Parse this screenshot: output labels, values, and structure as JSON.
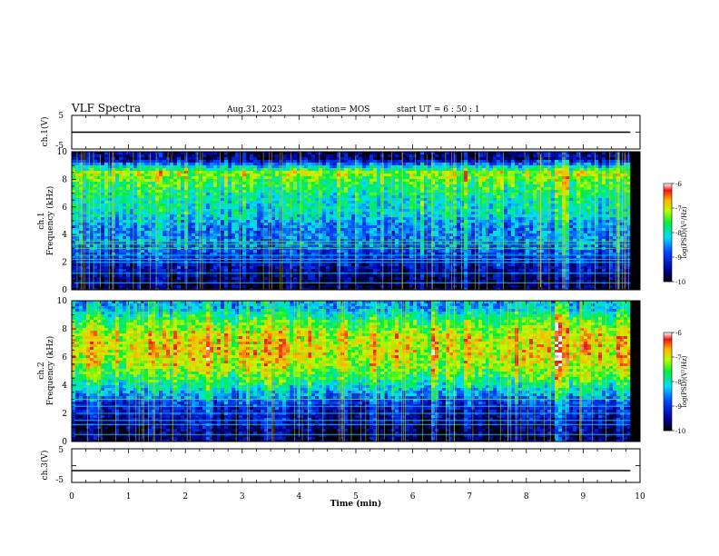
{
  "header": {
    "title": "VLF Spectra",
    "date": "Aug.31, 2023",
    "station": "station= MOS",
    "start": "start  UT =  6 : 50 : 1"
  },
  "chart_data": [
    {
      "type": "line",
      "id": "ch1-waveform",
      "ylabel": "ch.1(V)",
      "ylim": [
        -5,
        5
      ],
      "yticks": [
        "5",
        "-5"
      ],
      "xlim": [
        0,
        10
      ],
      "series": [
        {
          "x": [
            0,
            9.83
          ],
          "values": [
            0,
            0
          ]
        }
      ]
    },
    {
      "type": "heatmap",
      "id": "ch1-spectrogram",
      "ylabel": "ch.1\nFrequency (kHz)",
      "xlim": [
        0,
        10
      ],
      "ylim": [
        0,
        10
      ],
      "yticks": [
        "0",
        "2",
        "4",
        "6",
        "8",
        "10"
      ],
      "data_x_end": 9.83,
      "colorbar": {
        "label": "log(PSD)(V²/Hz)",
        "range": [
          -10,
          -6
        ],
        "ticks": [
          "-6",
          "-7",
          "-8",
          "-9",
          "-10"
        ]
      },
      "profile": [
        {
          "f": 0.5,
          "v": -9.8
        },
        {
          "f": 1.5,
          "v": -9.4
        },
        {
          "f": 2.5,
          "v": -9.0
        },
        {
          "f": 3.5,
          "v": -8.6
        },
        {
          "f": 4.5,
          "v": -8.6
        },
        {
          "f": 5.5,
          "v": -8.1
        },
        {
          "f": 6.5,
          "v": -8.0
        },
        {
          "f": 7.5,
          "v": -7.7
        },
        {
          "f": 8.5,
          "v": -7.2
        },
        {
          "f": 9.5,
          "v": -9.6
        }
      ],
      "lines_khz": [
        0.5,
        1.2,
        2.0,
        2.2,
        2.5,
        3.0,
        3.3,
        3.5
      ],
      "peak_time_min": 8.6
    },
    {
      "type": "heatmap",
      "id": "ch2-spectrogram",
      "ylabel": "ch.2\nFrequency (kHz)",
      "xlim": [
        0,
        10
      ],
      "ylim": [
        0,
        10
      ],
      "yticks": [
        "0",
        "2",
        "4",
        "6",
        "8",
        "10"
      ],
      "data_x_end": 9.83,
      "colorbar": {
        "label": "log(PSD)(V²/Hz)",
        "range": [
          -10,
          -6
        ],
        "ticks": [
          "-6",
          "-7",
          "-8",
          "-9",
          "-10"
        ]
      },
      "profile": [
        {
          "f": 0.5,
          "v": -9.7
        },
        {
          "f": 1.5,
          "v": -9.4
        },
        {
          "f": 2.5,
          "v": -9.1
        },
        {
          "f": 3.5,
          "v": -8.3
        },
        {
          "f": 4.5,
          "v": -7.6
        },
        {
          "f": 5.5,
          "v": -7.1
        },
        {
          "f": 6.5,
          "v": -6.9
        },
        {
          "f": 7.5,
          "v": -7.0
        },
        {
          "f": 8.5,
          "v": -7.5
        },
        {
          "f": 9.5,
          "v": -8.3
        }
      ],
      "lines_khz": [
        0.5,
        1.2,
        1.5,
        2.0,
        2.5,
        3.0
      ],
      "peak_time_min": 8.6
    },
    {
      "type": "line",
      "id": "ch3-waveform",
      "ylabel": "ch.3(V)",
      "ylim": [
        -5,
        5
      ],
      "yticks": [
        "5",
        "-5"
      ],
      "xlim": [
        0,
        10
      ],
      "xlabel": "Time (min)",
      "xticks": [
        "0",
        "1",
        "2",
        "3",
        "4",
        "5",
        "6",
        "7",
        "8",
        "9",
        "10"
      ],
      "series": [
        {
          "x": [
            0,
            9.83
          ],
          "values": [
            -1.5,
            -1.5
          ]
        }
      ]
    }
  ]
}
